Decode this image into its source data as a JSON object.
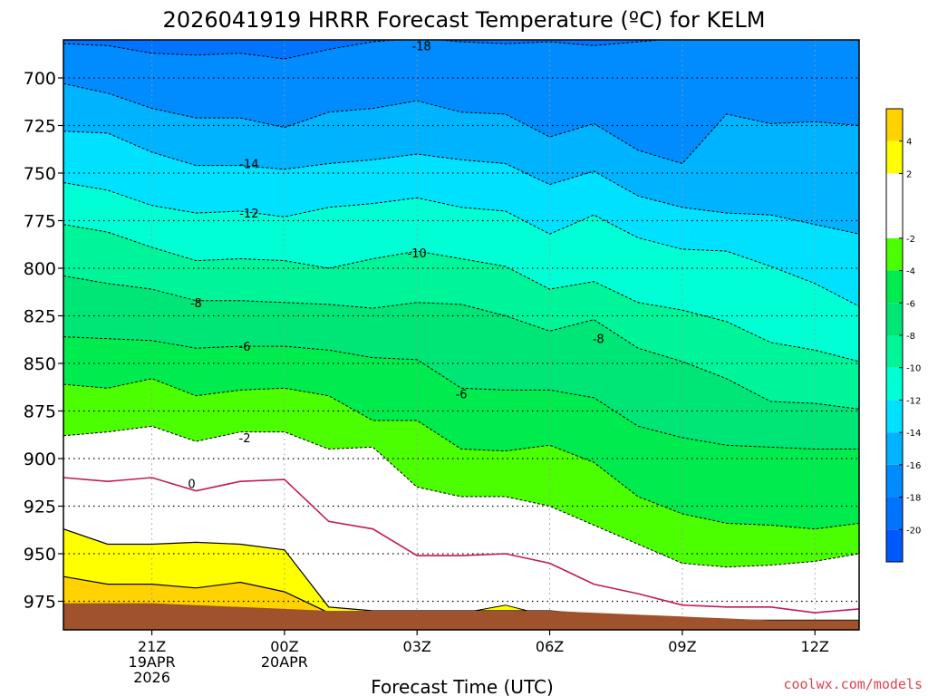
{
  "chart_data": {
    "type": "contour",
    "title": "2026041919 HRRR Forecast Temperature (ºC) for KELM",
    "xlabel": "Forecast Time (UTC)",
    "ylabel": "",
    "x_start": "2026-04-19 19Z",
    "x_end": "2026-04-20 13Z",
    "xlim": [
      19,
      37
    ],
    "ylim": [
      990,
      680
    ],
    "y_ticks": [
      700,
      725,
      750,
      775,
      800,
      825,
      850,
      875,
      900,
      925,
      950,
      975
    ],
    "x_ticks": [
      {
        "x": 21,
        "label": "21Z",
        "line2": "19APR",
        "line3": "2026"
      },
      {
        "x": 24,
        "label": "00Z",
        "line2": "20APR",
        "line3": ""
      },
      {
        "x": 27,
        "label": "03Z",
        "line2": "",
        "line3": ""
      },
      {
        "x": 30,
        "label": "06Z",
        "line2": "",
        "line3": ""
      },
      {
        "x": 33,
        "label": "09Z",
        "line2": "",
        "line3": ""
      },
      {
        "x": 36,
        "label": "12Z",
        "line2": "",
        "line3": ""
      }
    ],
    "times": [
      19,
      20,
      21,
      22,
      23,
      24,
      25,
      26,
      27,
      28,
      29,
      30,
      31,
      32,
      33,
      34,
      35,
      36,
      37
    ],
    "contours": [
      {
        "level": -18,
        "pressure": [
          682,
          683,
          687,
          688,
          687,
          690,
          685,
          681,
          679,
          681,
          682,
          681,
          683,
          681,
          679,
          679,
          679,
          679,
          679
        ]
      },
      {
        "level": -16,
        "pressure": [
          703,
          708,
          716,
          721,
          721,
          726,
          718,
          716,
          712,
          718,
          719,
          731,
          724,
          738,
          745,
          719,
          724,
          723,
          725
        ]
      },
      {
        "level": -14,
        "pressure": [
          728,
          729,
          739,
          746,
          746,
          748,
          745,
          743,
          740,
          743,
          745,
          756,
          749,
          762,
          768,
          771,
          772,
          777,
          782
        ]
      },
      {
        "level": -12,
        "pressure": [
          755,
          759,
          767,
          771,
          770,
          773,
          768,
          766,
          763,
          768,
          770,
          782,
          772,
          784,
          790,
          791,
          799,
          808,
          820
        ]
      },
      {
        "level": -10,
        "pressure": [
          777,
          781,
          789,
          796,
          795,
          796,
          800,
          795,
          791,
          795,
          799,
          811,
          807,
          818,
          822,
          828,
          839,
          843,
          849
        ]
      },
      {
        "level": -8,
        "pressure": [
          804,
          808,
          811,
          817,
          817,
          818,
          819,
          821,
          818,
          819,
          825,
          833,
          827,
          842,
          849,
          858,
          870,
          871,
          874
        ]
      },
      {
        "level": -6,
        "pressure": [
          836,
          837,
          838,
          842,
          841,
          841,
          843,
          847,
          848,
          863,
          864,
          864,
          868,
          883,
          889,
          893,
          894,
          895,
          895
        ]
      },
      {
        "level": -4,
        "pressure": [
          861,
          863,
          858,
          867,
          864,
          863,
          867,
          880,
          880,
          895,
          896,
          893,
          902,
          920,
          929,
          934,
          935,
          937,
          934
        ]
      },
      {
        "level": -2,
        "pressure": [
          888,
          886,
          883,
          891,
          886,
          886,
          895,
          894,
          915,
          920,
          920,
          925,
          935,
          945,
          955,
          957,
          956,
          954,
          950
        ]
      },
      {
        "level": 0,
        "pressure": [
          910,
          912,
          910,
          917,
          912,
          911,
          933,
          937,
          951,
          951,
          950,
          955,
          966,
          971,
          977,
          978,
          978,
          981,
          979
        ]
      },
      {
        "level": 2,
        "pressure": [
          937,
          945,
          945,
          944,
          945,
          948,
          978,
          980,
          980,
          980,
          980,
          980,
          982,
          983,
          984,
          985,
          985,
          985,
          985
        ]
      },
      {
        "level": 4,
        "pressure": [
          962,
          966,
          966,
          968,
          965,
          970,
          981,
          981,
          981,
          981,
          981,
          981,
          982,
          983,
          984,
          985,
          985,
          985,
          985
        ]
      }
    ],
    "surface_pressure": [
      976,
      976,
      976,
      977,
      978,
      979,
      980,
      980,
      980,
      980,
      980,
      980,
      981,
      982,
      983,
      984,
      985,
      985,
      985
    ],
    "warm_pocket": {
      "level": 2,
      "x": [
        28.3,
        29.0,
        29.5
      ],
      "pressure": [
        980,
        977,
        980
      ]
    },
    "contour_labels": [
      {
        "text": "-18",
        "x": 27.1,
        "p": 683
      },
      {
        "text": "-14",
        "x": 23.2,
        "p": 745
      },
      {
        "text": "-12",
        "x": 23.2,
        "p": 771
      },
      {
        "text": "-10",
        "x": 27.0,
        "p": 792
      },
      {
        "text": "-8",
        "x": 22.0,
        "p": 818
      },
      {
        "text": "-8",
        "x": 31.1,
        "p": 837
      },
      {
        "text": "-6",
        "x": 23.1,
        "p": 841
      },
      {
        "text": "-6",
        "x": 28.0,
        "p": 866
      },
      {
        "text": "-2",
        "x": 23.1,
        "p": 889
      },
      {
        "text": "0",
        "x": 21.9,
        "p": 913
      }
    ],
    "legend": {
      "placement": "right",
      "bands": [
        {
          "from": -22,
          "to": -20,
          "color": "#0059ff"
        },
        {
          "from": -20,
          "to": -18,
          "color": "#0073ff"
        },
        {
          "from": -18,
          "to": -16,
          "color": "#008cff"
        },
        {
          "from": -16,
          "to": -14,
          "color": "#00b3ff"
        },
        {
          "from": -14,
          "to": -12,
          "color": "#00e1ff"
        },
        {
          "from": -12,
          "to": -10,
          "color": "#00ffd5"
        },
        {
          "from": -10,
          "to": -8,
          "color": "#00f598"
        },
        {
          "from": -8,
          "to": -6,
          "color": "#00e676"
        },
        {
          "from": -6,
          "to": -4,
          "color": "#00ec4e"
        },
        {
          "from": -4,
          "to": -2,
          "color": "#4cff00"
        },
        {
          "from": -2,
          "to": 2,
          "color": "#ffffff"
        },
        {
          "from": 2,
          "to": 4,
          "color": "#ffff00"
        },
        {
          "from": 4,
          "to": 6,
          "color": "#ffd200"
        }
      ],
      "tick_labels": [
        "4",
        "2",
        "-2",
        "-4",
        "-6",
        "-8",
        "-10",
        "-12",
        "-14",
        "-16",
        "-18",
        "-20"
      ],
      "tick_values": [
        4,
        2,
        -2,
        -4,
        -6,
        -8,
        -10,
        -12,
        -14,
        -16,
        -18,
        -20
      ]
    },
    "colors": {
      "ground": "#a0522d",
      "freezing_line": "#c2185b",
      "background": "#ffffff"
    },
    "grid": true
  },
  "credit": "coolwx.com/models"
}
